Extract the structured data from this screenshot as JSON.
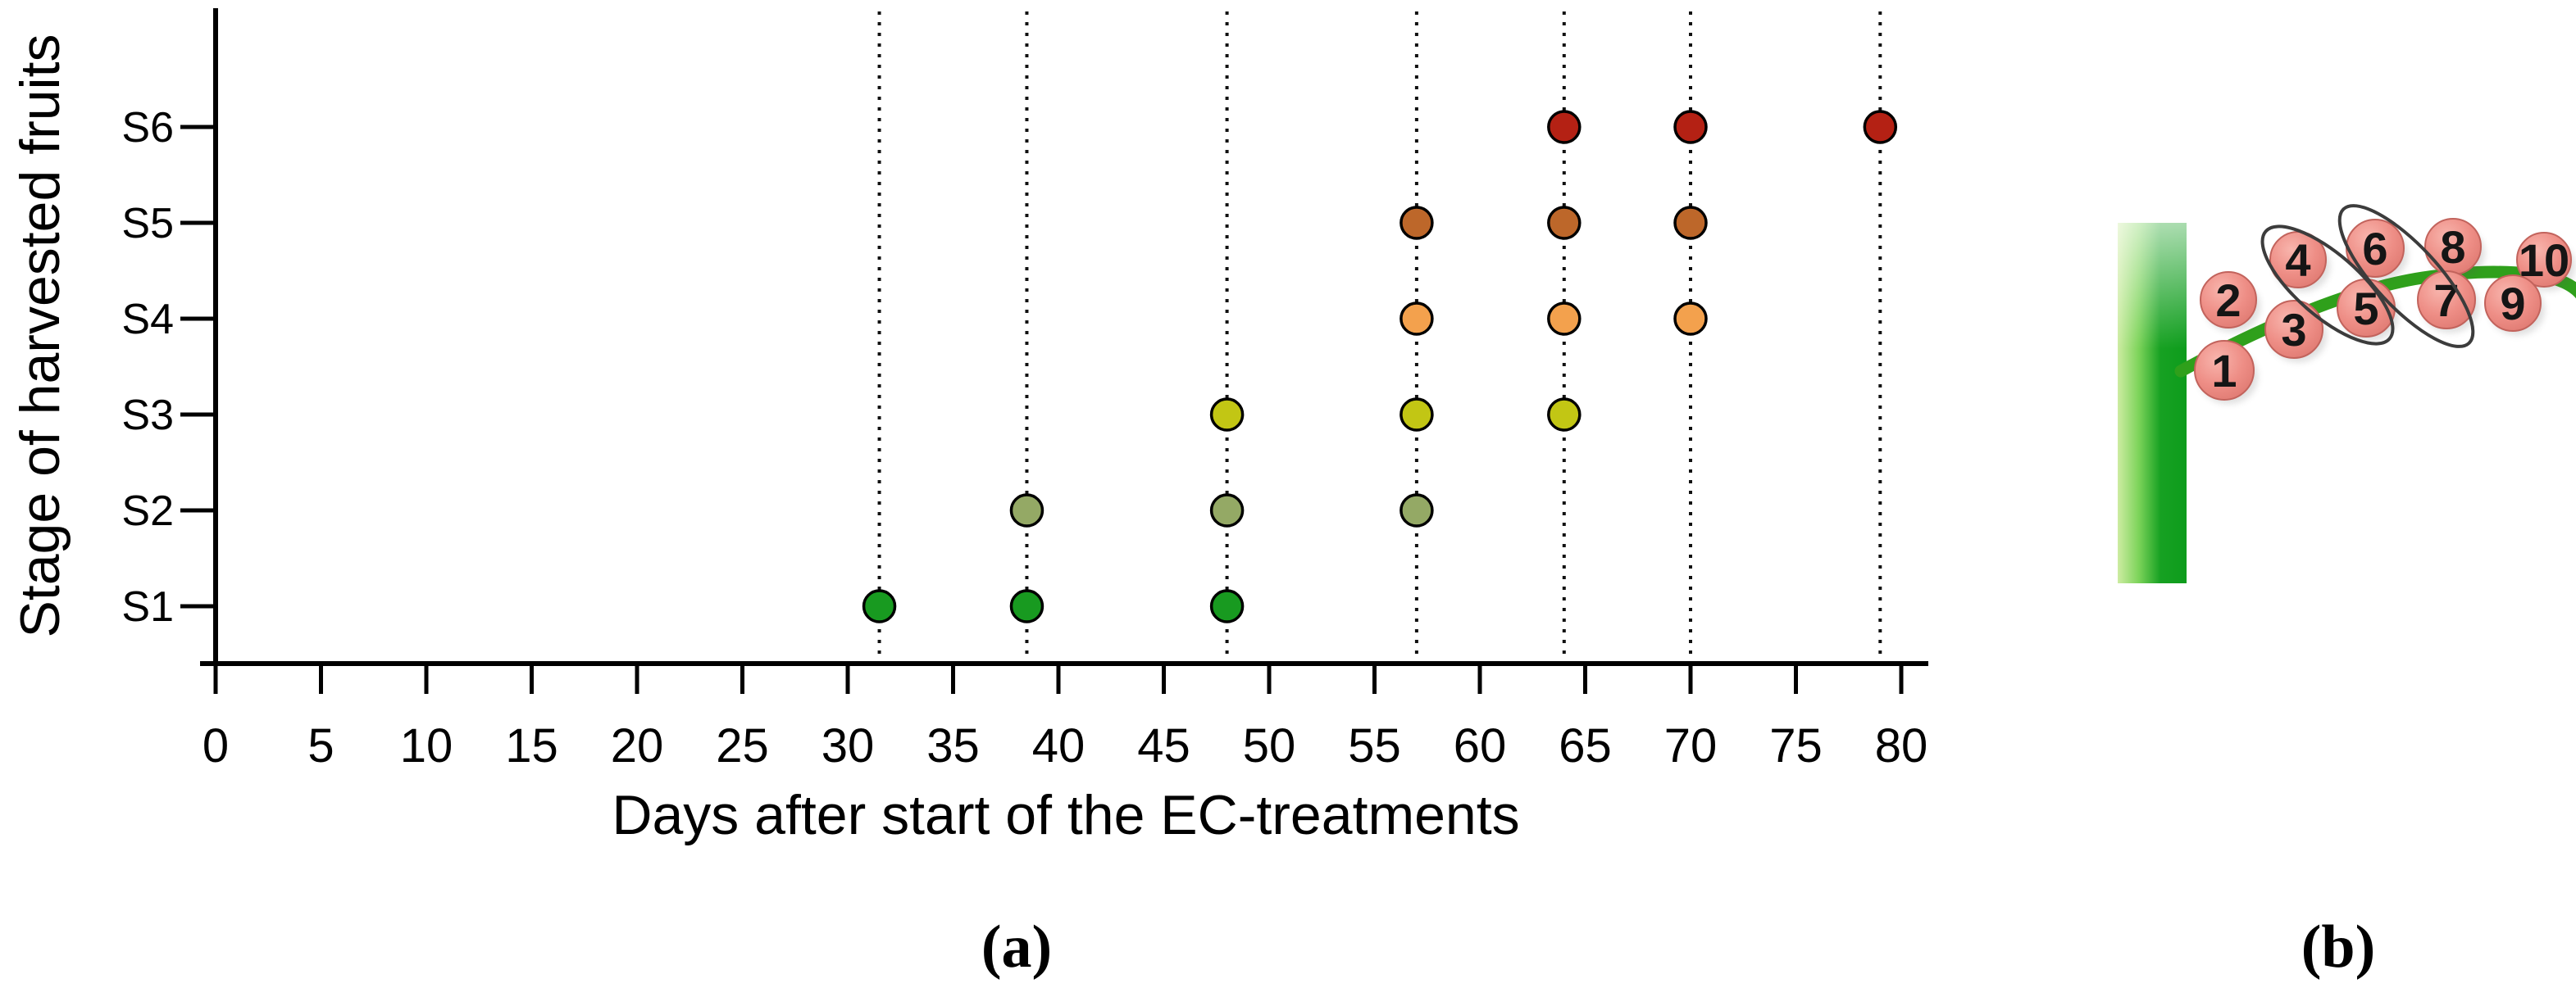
{
  "figure": {
    "caption_a": "(a)",
    "caption_b": "(b)"
  },
  "chart_data": {
    "type": "scatter",
    "title": "",
    "xlabel": "Days after start of the EC-treatments",
    "ylabel": "Stage of harvested fruits",
    "x_ticks": [
      0,
      5,
      10,
      15,
      20,
      25,
      30,
      35,
      40,
      45,
      50,
      55,
      60,
      65,
      70,
      75,
      80
    ],
    "xlim": [
      0,
      82
    ],
    "y_categories": [
      "S1",
      "S2",
      "S3",
      "S4",
      "S5",
      "S6"
    ],
    "harvest_days": [
      31.5,
      38.5,
      48,
      57,
      64,
      70,
      79
    ],
    "gridlines": "dotted vertical lines at each harvest day",
    "legend_position": "none",
    "series": [
      {
        "name": "S1",
        "color": "#189a20",
        "days": [
          31.5,
          38.5,
          48
        ]
      },
      {
        "name": "S2",
        "color": "#94a965",
        "days": [
          38.5,
          48,
          57
        ]
      },
      {
        "name": "S3",
        "color": "#c2c614",
        "days": [
          48,
          57,
          64
        ]
      },
      {
        "name": "S4",
        "color": "#f3a14d",
        "days": [
          57,
          64,
          70
        ]
      },
      {
        "name": "S5",
        "color": "#bd672a",
        "days": [
          57,
          64,
          70
        ]
      },
      {
        "name": "S6",
        "color": "#b42114",
        "days": [
          64,
          70,
          79
        ]
      }
    ]
  },
  "panel_b": {
    "description": "tomato truss diagram on stem",
    "fruit_numbers": [
      "1",
      "2",
      "3",
      "4",
      "5",
      "6",
      "7",
      "8",
      "9",
      "10"
    ],
    "fruit_color": "#ee8e86",
    "fruit_edge_color": "#c2635c",
    "stem_color_light": "#cdeca2",
    "stem_color_dark": "#0d9c1c",
    "truss_color": "#2fa01b",
    "ellipse_outline_color": "#3c3c3c",
    "ellipse_groups": [
      [
        "4",
        "5"
      ],
      [
        "6",
        "7"
      ]
    ]
  }
}
